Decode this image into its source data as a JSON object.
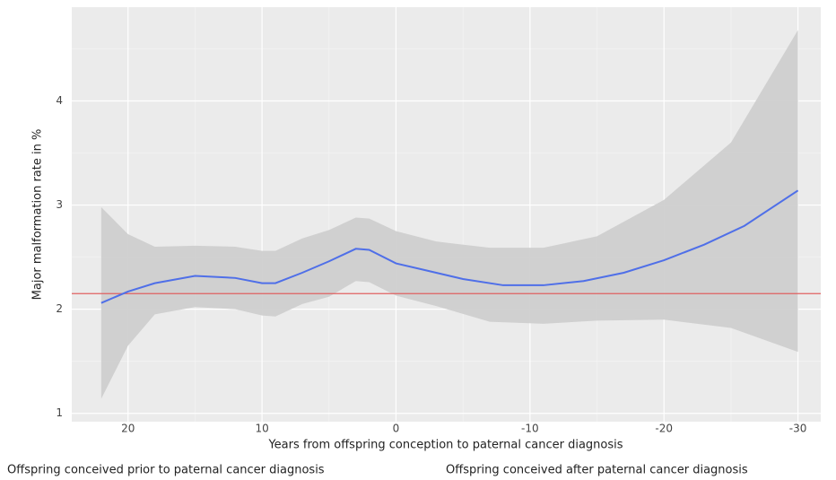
{
  "chart_data": {
    "type": "line",
    "x_label": "Years from offspring conception to paternal cancer diagnosis",
    "y_label": "Major malformation rate in %",
    "annotations": [
      "Offspring conceived prior to paternal cancer diagnosis",
      "Offspring conceived after paternal cancer diagnosis"
    ],
    "x": [
      22,
      20,
      18,
      15,
      12,
      10,
      9,
      7,
      5,
      3,
      2,
      0,
      -2,
      -5,
      -8,
      -11,
      -14,
      -17,
      -20,
      -23,
      -26,
      -30
    ],
    "series": [
      {
        "color": "#4f6fe8",
        "values": [
          2.06,
          2.17,
          2.25,
          2.32,
          2.3,
          2.25,
          2.25,
          2.35,
          2.46,
          2.58,
          2.57,
          2.44,
          2.38,
          2.29,
          2.23,
          2.23,
          2.27,
          2.35,
          2.47,
          2.62,
          2.8,
          3.14
        ]
      }
    ],
    "band": {
      "color": "#cfcfcf",
      "x": [
        22,
        20,
        18,
        15,
        12,
        10,
        9,
        7,
        5,
        3,
        2,
        0,
        -3,
        -7,
        -11,
        -15,
        -20,
        -25,
        -30
      ],
      "upper": [
        2.98,
        2.72,
        2.6,
        2.61,
        2.6,
        2.56,
        2.56,
        2.68,
        2.76,
        2.88,
        2.87,
        2.75,
        2.65,
        2.59,
        2.59,
        2.7,
        3.05,
        3.6,
        4.68
      ],
      "lower": [
        1.14,
        1.65,
        1.95,
        2.02,
        2.0,
        1.94,
        1.93,
        2.05,
        2.12,
        2.27,
        2.26,
        2.13,
        2.03,
        1.88,
        1.86,
        1.89,
        1.9,
        1.82,
        1.59
      ]
    },
    "reference_line": {
      "value": 2.15,
      "color": "#e06060"
    },
    "xlim": [
      24.2,
      -31.7
    ],
    "ylim": [
      0.92,
      4.9
    ],
    "xticks": [
      20,
      10,
      0,
      -10,
      -20,
      -30
    ],
    "yticks": [
      1,
      2,
      3,
      4
    ],
    "xminor": [
      15,
      5,
      -5,
      -15,
      -25
    ],
    "yminor": [
      1.5,
      2.5,
      3.5,
      4.5
    ],
    "grid": true
  }
}
